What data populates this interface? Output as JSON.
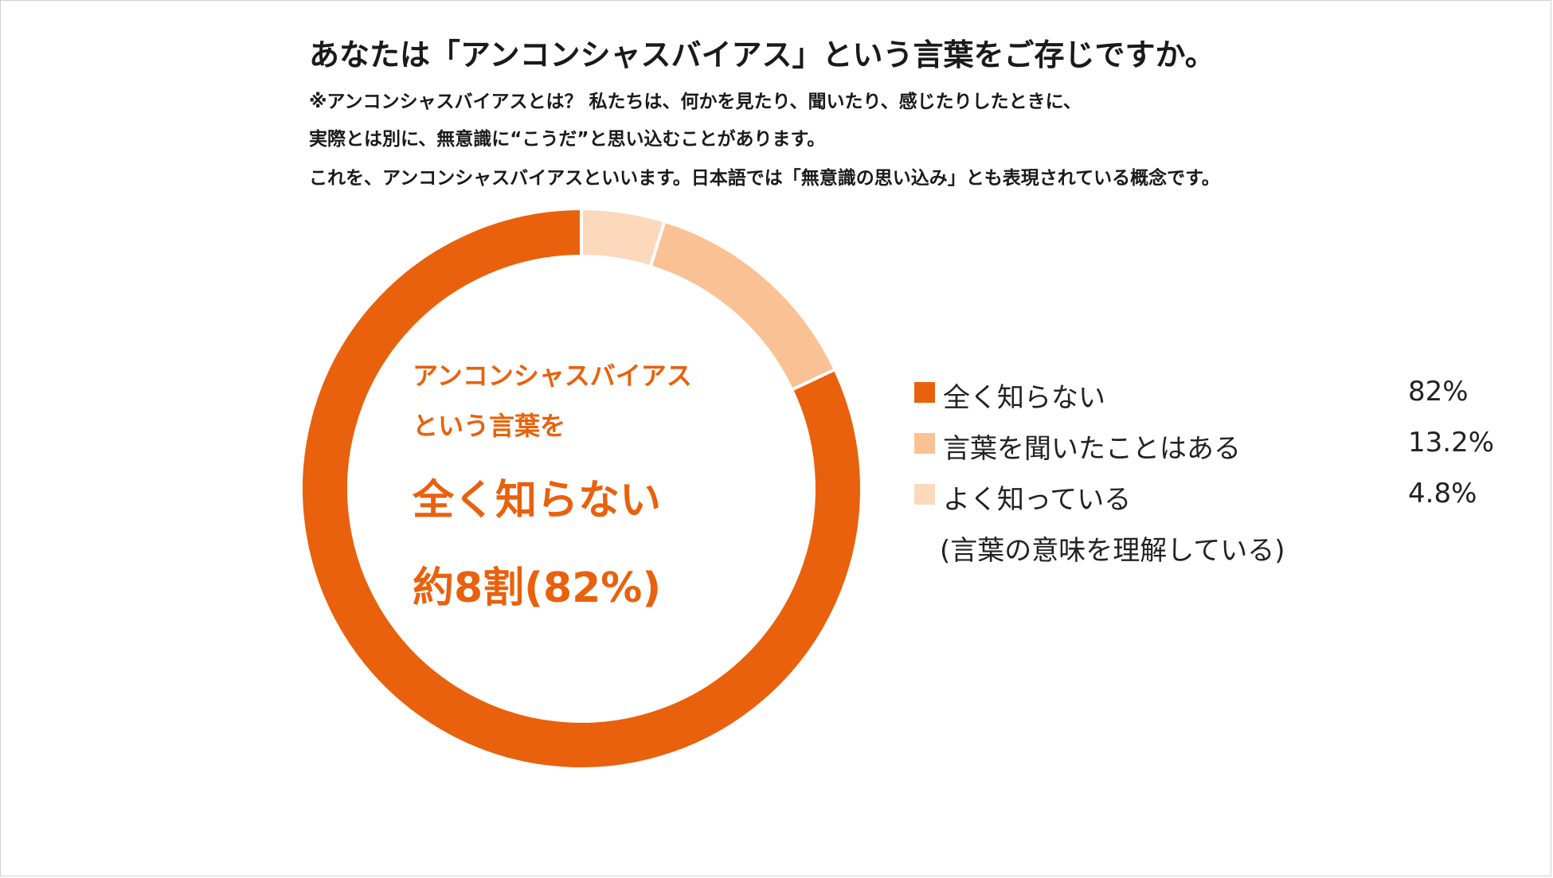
{
  "title": "あなたは「アンコンシャスバイアス」という言葉をご存じですか。",
  "notes": [
    "※アンコンシャスバイアスとは？ 私たちは、何かを見たり、聞いたり、感じたりしたときに、",
    "実際とは別に、無意識に“こうだ”と思い込むことがあります。",
    "これを、アンコンシャスバイアスといいます。日本語では「無意識の思い込み」とも表現されている概念です。"
  ],
  "center": {
    "line1": "アンコンシャスバイアス",
    "line2": "という言葉を",
    "line3": "全く知らない",
    "line4": "約8割(82%)"
  },
  "chart_data": {
    "type": "pie",
    "title": "あなたは「アンコンシャスバイアス」という言葉をご存じですか。",
    "legend_position": "right",
    "order": "clockwise-from-top-reverse",
    "series": [
      {
        "name": "全く知らない",
        "value": 82,
        "value_label": "82%",
        "color": "#e9610c"
      },
      {
        "name": "言葉を聞いたことはある",
        "value": 13.2,
        "value_label": "13.2%",
        "color": "#f9c194"
      },
      {
        "name": "よく知っている",
        "value": 4.8,
        "value_label": "4.8%",
        "color": "#fcd8bd",
        "sub_label": "(言葉の意味を理解している)"
      }
    ]
  }
}
